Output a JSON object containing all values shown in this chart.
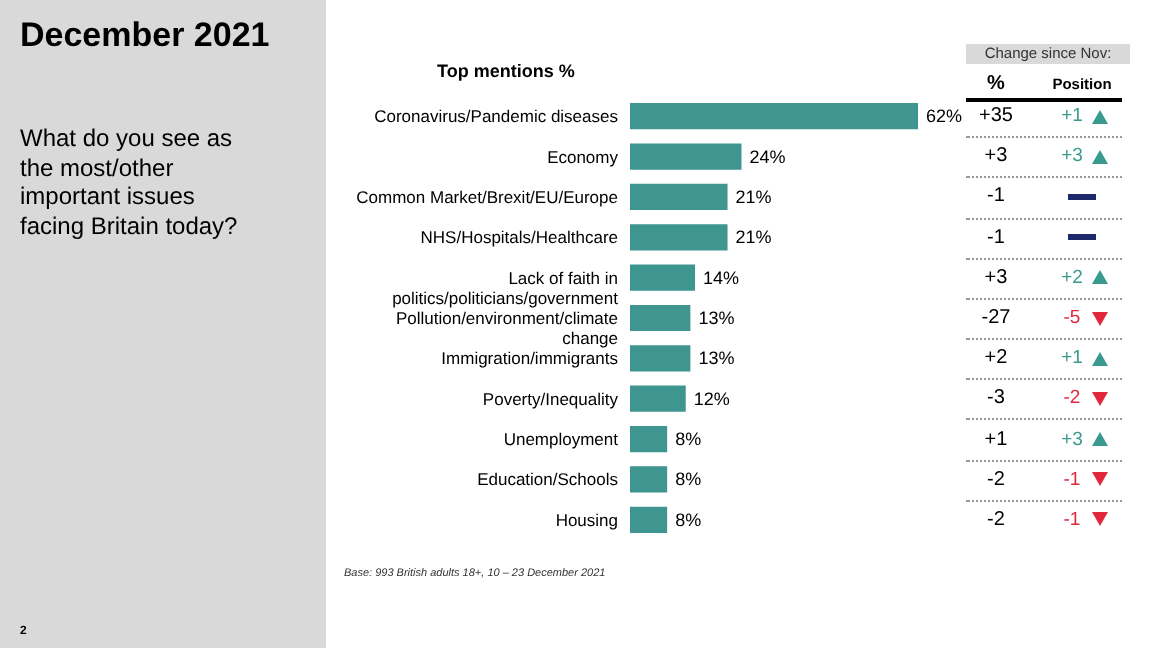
{
  "chart_data": [
    {
      "type": "bar",
      "orientation": "horizontal",
      "title": "December 2021",
      "subtitle": "What do you see as the most/other important issues facing Britain today?",
      "xlabel": "Top mentions %",
      "categories": [
        "Coronavirus/Pandemic diseases",
        "Economy",
        "Common Market/Brexit/EU/Europe",
        "NHS/Hospitals/Healthcare",
        "Lack of faith in politics/politicians/government",
        "Pollution/environment/climate change",
        "Immigration/immigrants",
        "Poverty/Inequality",
        "Unemployment",
        "Education/Schools",
        "Housing"
      ],
      "values": [
        62,
        24,
        21,
        21,
        14,
        13,
        13,
        12,
        8,
        8,
        8
      ],
      "value_labels": [
        "62%",
        "24%",
        "21%",
        "21%",
        "14%",
        "13%",
        "13%",
        "12%",
        "8%",
        "8%",
        "8%"
      ],
      "color": "#3f9690",
      "annotations": [
        "Base: 993 British adults 18+, 10 – 23 December 2021",
        "2"
      ]
    },
    {
      "type": "other",
      "title": "Change since Nov:",
      "categories": [
        "%",
        "Position"
      ],
      "cell_labels": [
        [
          "+35",
          "+1"
        ],
        [
          "+3",
          "+3"
        ],
        [
          "-1",
          null
        ],
        [
          "-1",
          null
        ],
        [
          "+3",
          "+2"
        ],
        [
          "-27",
          "-5"
        ],
        [
          "+2",
          "+1"
        ],
        [
          "-3",
          "-2"
        ],
        [
          "+1",
          "+3"
        ],
        [
          "-2",
          "-1"
        ],
        [
          "-2",
          "-1"
        ]
      ]
    }
  ]
}
